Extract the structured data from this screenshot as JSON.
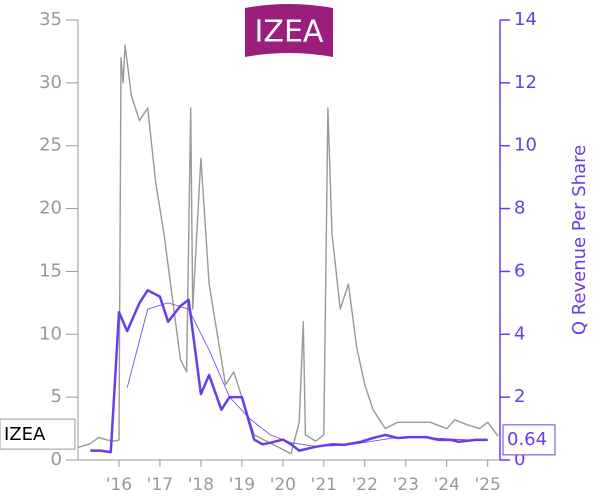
{
  "logo": "IZEA",
  "chart_data": {
    "type": "line",
    "y2_label": "Q Revenue Per Share",
    "xlim": [
      2015,
      2025.3
    ],
    "xticks": [
      {
        "value": 2016,
        "label": "'16"
      },
      {
        "value": 2017,
        "label": "'17"
      },
      {
        "value": 2018,
        "label": "'18"
      },
      {
        "value": 2019,
        "label": "'19"
      },
      {
        "value": 2020,
        "label": "'20"
      },
      {
        "value": 2021,
        "label": "'21"
      },
      {
        "value": 2022,
        "label": "'22"
      },
      {
        "value": 2023,
        "label": "'23"
      },
      {
        "value": 2024,
        "label": "'24"
      },
      {
        "value": 2025,
        "label": "'25"
      }
    ],
    "ylim": [
      0,
      35
    ],
    "yticks": [
      0,
      5,
      10,
      15,
      20,
      25,
      30,
      35
    ],
    "y2lim": [
      0,
      14
    ],
    "y2ticks": [
      0,
      2,
      4,
      6,
      8,
      10,
      12,
      14
    ],
    "series": [
      {
        "name": "IZEA",
        "color": "#999999",
        "x": [
          2015.0,
          2015.3,
          2015.5,
          2015.7,
          2015.9,
          2016.0,
          2016.05,
          2016.1,
          2016.15,
          2016.3,
          2016.5,
          2016.7,
          2016.9,
          2017.1,
          2017.3,
          2017.5,
          2017.65,
          2017.75,
          2017.8,
          2018.0,
          2018.2,
          2018.4,
          2018.6,
          2018.8,
          2019.0,
          2019.3,
          2019.6,
          2019.9,
          2020.2,
          2020.4,
          2020.5,
          2020.55,
          2020.8,
          2021.0,
          2021.1,
          2021.2,
          2021.4,
          2021.6,
          2021.8,
          2022.0,
          2022.2,
          2022.5,
          2022.8,
          2023.0,
          2023.3,
          2023.6,
          2024.0,
          2024.2,
          2024.5,
          2024.8,
          2025.0,
          2025.25
        ],
        "values": [
          1.0,
          1.3,
          1.8,
          1.6,
          1.5,
          1.6,
          32,
          30,
          33,
          29,
          27,
          28,
          22,
          18,
          13,
          8,
          7,
          28,
          12,
          24,
          14,
          10,
          6,
          7,
          5,
          2,
          1.5,
          1.0,
          0.5,
          3,
          11,
          2,
          1.5,
          2,
          28,
          18,
          12,
          14,
          9,
          6,
          4,
          2.5,
          3,
          3,
          3,
          3,
          2.5,
          3.2,
          2.8,
          2.5,
          3,
          1.9
        ]
      },
      {
        "color": "#6a3de8",
        "axis": "y2",
        "x": [
          2015.3,
          2015.55,
          2015.8,
          2016.0,
          2016.2,
          2016.5,
          2016.7,
          2017.0,
          2017.2,
          2017.5,
          2017.7,
          2018.0,
          2018.2,
          2018.5,
          2018.7,
          2019.0,
          2019.3,
          2019.5,
          2019.7,
          2020.0,
          2020.2,
          2020.4,
          2020.8,
          2021.2,
          2021.5,
          2021.9,
          2022.2,
          2022.5,
          2022.8,
          2023.1,
          2023.5,
          2023.8,
          2024.1,
          2024.3,
          2024.7,
          2025.0
        ],
        "values": [
          0.3,
          0.3,
          0.25,
          4.7,
          4.1,
          5.0,
          5.4,
          5.2,
          4.4,
          4.9,
          5.1,
          2.1,
          2.7,
          1.6,
          2.0,
          2.0,
          0.65,
          0.5,
          0.55,
          0.65,
          0.5,
          0.3,
          0.42,
          0.5,
          0.48,
          0.58,
          0.7,
          0.8,
          0.7,
          0.73,
          0.73,
          0.64,
          0.64,
          0.58,
          0.64,
          0.64
        ]
      },
      {
        "color": "#6a3de8",
        "axis": "y2",
        "thin": true,
        "x": [
          2016.2,
          2016.7,
          2017.2,
          2017.7,
          2018.2,
          2018.7,
          2019.2,
          2019.7,
          2020.2,
          2020.7,
          2021.2,
          2021.7,
          2022.2,
          2022.7,
          2023.2,
          2023.7,
          2024.2,
          2024.7,
          2025.0
        ],
        "values": [
          2.3,
          4.8,
          5.0,
          4.8,
          3.5,
          2.0,
          1.3,
          0.8,
          0.55,
          0.45,
          0.45,
          0.5,
          0.6,
          0.7,
          0.72,
          0.7,
          0.66,
          0.63,
          0.62
        ]
      }
    ]
  }
}
